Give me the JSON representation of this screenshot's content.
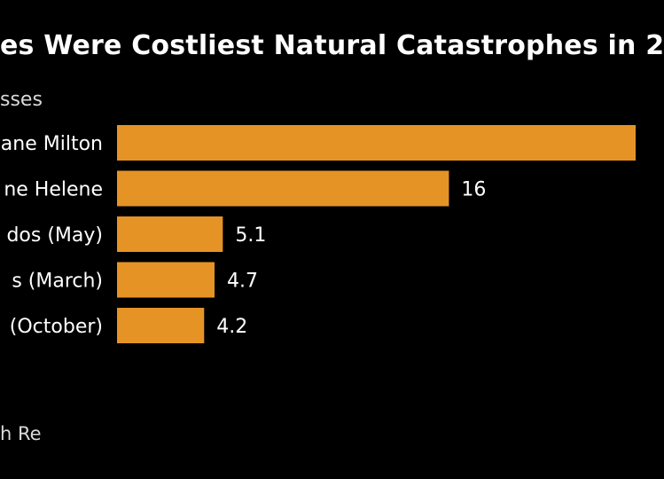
{
  "title": "es Were Costliest Natural Catastrophes in 2",
  "subtitle": "sses",
  "source": "h Re",
  "chart_data": {
    "type": "bar",
    "orientation": "horizontal",
    "color": "#E69326",
    "categories": [
      "ane Milton",
      "ne Helene",
      "dos (May)",
      "s (March)",
      "(October)"
    ],
    "values": [
      25,
      16,
      5.1,
      4.7,
      4.2
    ],
    "labels": [
      null,
      "16",
      "5.1",
      "4.7",
      "4.2"
    ],
    "xlim": [
      0,
      25
    ],
    "grid": false
  }
}
